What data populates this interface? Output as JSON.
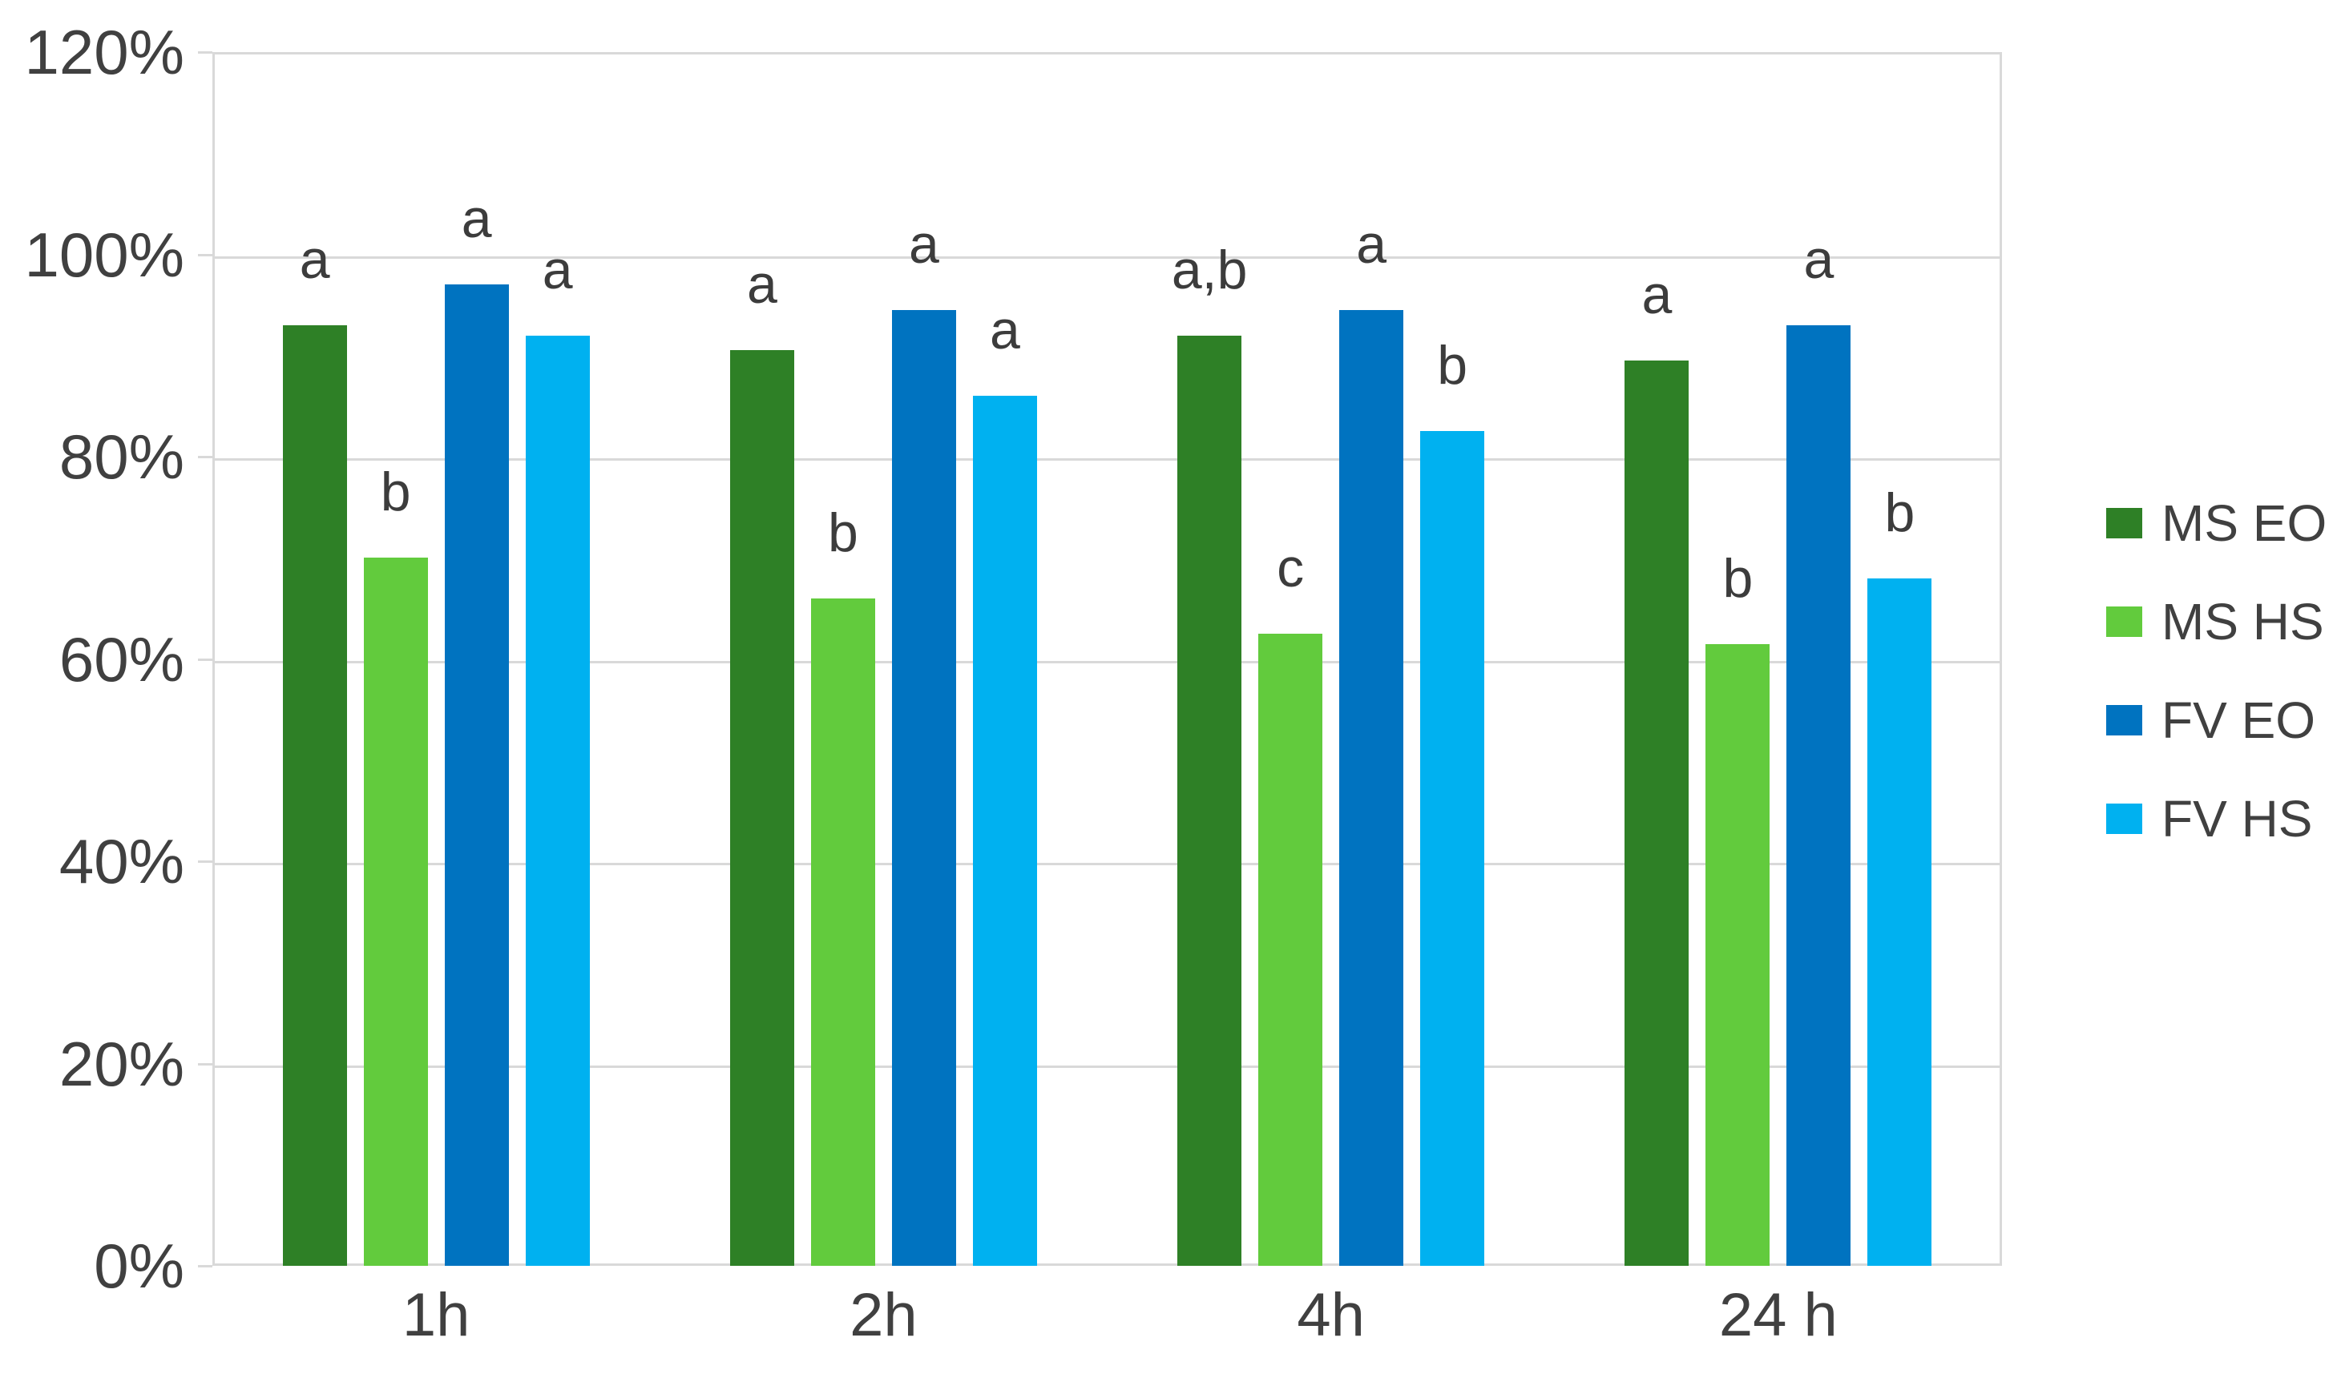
{
  "chart_data": {
    "type": "bar",
    "title": "",
    "xlabel": "",
    "ylabel": "",
    "categories": [
      "1h",
      "2h",
      "4h",
      "24 h"
    ],
    "series": [
      {
        "name": "MS EO",
        "color": "#2E8026",
        "values": [
          93,
          90.5,
          92,
          89.5
        ],
        "letters": [
          "a",
          "a",
          "a,b",
          "a"
        ]
      },
      {
        "name": "MS HS",
        "color": "#62CB3D",
        "values": [
          70,
          66,
          62.5,
          61.5
        ],
        "letters": [
          "b",
          "b",
          "c",
          "b"
        ]
      },
      {
        "name": "FV EO",
        "color": "#0073C0",
        "values": [
          97,
          94.5,
          94.5,
          93
        ],
        "letters": [
          "a",
          "a",
          "a",
          "a"
        ]
      },
      {
        "name": "FV HS",
        "color": "#00B1F0",
        "values": [
          92,
          86,
          82.5,
          68
        ],
        "letters": [
          "a",
          "a",
          "b",
          "b"
        ]
      }
    ],
    "ylim": [
      0,
      120
    ],
    "ytick_values": [
      0,
      20,
      40,
      60,
      80,
      100,
      120
    ],
    "ytick_labels": [
      "0%",
      "20%",
      "40%",
      "60%",
      "80%",
      "100%",
      "120%"
    ],
    "grid": true,
    "legend_position": "right"
  },
  "theme": {
    "background": "#FFFFFF",
    "grid_color": "#D9D9D9",
    "axis_text_color": "#404040",
    "letter_color": "#3C3C3C"
  }
}
